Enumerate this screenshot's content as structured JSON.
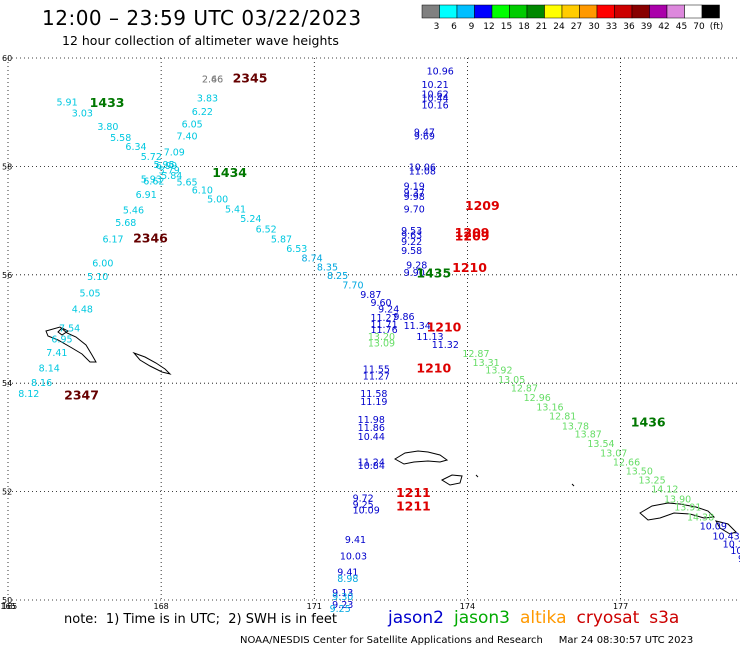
{
  "header": {
    "title": "12:00 – 23:59 UTC 03/22/2023",
    "subtitle": "12 hour collection of altimeter wave heights"
  },
  "footer": {
    "note": "note:  1) Time is in UTC;  2) SWH is in feet",
    "credit": "NOAA/NESDIS Center for Satellite Applications and Research     Mar 24 08:30:57 UTC 2023"
  },
  "missions": [
    {
      "name": "jason2",
      "color": "#0000cc"
    },
    {
      "name": "jason3",
      "color": "#00aa00"
    },
    {
      "name": "altika",
      "color": "#ff9900"
    },
    {
      "name": "cryosat",
      "color": "#cc0000"
    },
    {
      "name": "s3a",
      "color": "#cc0000"
    }
  ],
  "colorbar": {
    "labels": [
      "3",
      "6",
      "9",
      "12",
      "15",
      "18",
      "21",
      "24",
      "27",
      "30",
      "33",
      "36",
      "39",
      "42",
      "45",
      "70",
      "(ft)"
    ],
    "colors": [
      "#808080",
      "#00ffff",
      "#00bfff",
      "#0000ff",
      "#00ff00",
      "#00cc00",
      "#008800",
      "#ffff00",
      "#ffcc00",
      "#ff9900",
      "#ff0000",
      "#cc0000",
      "#880000",
      "#aa00aa",
      "#dd88dd",
      "#ffffff",
      "#000000"
    ]
  },
  "chart_data": {
    "type": "scatter",
    "title": "12:00 – 23:59 UTC 03/22/2023",
    "subtitle": "12 hour collection of altimeter wave heights",
    "xlim": [
      165,
      179.3
    ],
    "ylim": [
      50,
      60
    ],
    "x_ticks": [
      "165",
      "168",
      "171",
      "174",
      "177"
    ],
    "y_ticks": [
      "50",
      "52",
      "54",
      "56",
      "58",
      "60"
    ],
    "grid": true,
    "unit": "ft",
    "points": [
      {
        "lon": 168.8,
        "lat": 59.55,
        "v": "2.46",
        "c": "#808080"
      },
      {
        "lon": 168.8,
        "lat": 59.55,
        "v": "2.66",
        "c": "#808080"
      },
      {
        "lon": 168.7,
        "lat": 59.2,
        "v": "3.83",
        "c": "#00c8e0"
      },
      {
        "lon": 168.6,
        "lat": 58.95,
        "v": "6.22",
        "c": "#00c8e0"
      },
      {
        "lon": 168.4,
        "lat": 58.72,
        "v": "6.05",
        "c": "#00c8e0"
      },
      {
        "lon": 168.3,
        "lat": 58.5,
        "v": "7.40",
        "c": "#00c8e0"
      },
      {
        "lon": 168.05,
        "lat": 58.2,
        "v": "7.09",
        "c": "#00c8e0"
      },
      {
        "lon": 167.9,
        "lat": 57.95,
        "v": "6.99",
        "c": "#00c8e0"
      },
      {
        "lon": 167.65,
        "lat": 57.67,
        "v": "6.62",
        "c": "#00c8e0"
      },
      {
        "lon": 167.5,
        "lat": 57.42,
        "v": "6.91",
        "c": "#00c8e0"
      },
      {
        "lon": 167.25,
        "lat": 57.13,
        "v": "5.46",
        "c": "#00c8e0"
      },
      {
        "lon": 167.1,
        "lat": 56.9,
        "v": "5.68",
        "c": "#00c8e0"
      },
      {
        "lon": 166.85,
        "lat": 56.6,
        "v": "6.17",
        "c": "#00c8e0"
      },
      {
        "lon": 166.65,
        "lat": 56.15,
        "v": "6.00",
        "c": "#00c8e0"
      },
      {
        "lon": 166.55,
        "lat": 55.9,
        "v": "5.10",
        "c": "#00c8e0"
      },
      {
        "lon": 166.4,
        "lat": 55.6,
        "v": "5.05",
        "c": "#00c8e0"
      },
      {
        "lon": 166.25,
        "lat": 55.3,
        "v": "4.48",
        "c": "#00c8e0"
      },
      {
        "lon": 166.0,
        "lat": 54.95,
        "v": "7.54",
        "c": "#00c8e0"
      },
      {
        "lon": 165.85,
        "lat": 54.75,
        "v": "6.95",
        "c": "#00c8e0"
      },
      {
        "lon": 165.75,
        "lat": 54.5,
        "v": "7.41",
        "c": "#00c8e0"
      },
      {
        "lon": 165.6,
        "lat": 54.22,
        "v": "8.14",
        "c": "#00c8e0"
      },
      {
        "lon": 165.45,
        "lat": 53.95,
        "v": "8.16",
        "c": "#00c8e0"
      },
      {
        "lon": 165.2,
        "lat": 53.75,
        "v": "8.12",
        "c": "#00c8e0"
      },
      {
        "lon": 165.95,
        "lat": 59.12,
        "v": "5.91",
        "c": "#00c8e0"
      },
      {
        "lon": 166.25,
        "lat": 58.92,
        "v": "3.03",
        "c": "#00c8e0"
      },
      {
        "lon": 166.75,
        "lat": 58.67,
        "v": "3.80",
        "c": "#00c8e0"
      },
      {
        "lon": 167.0,
        "lat": 58.47,
        "v": "5.58",
        "c": "#00c8e0"
      },
      {
        "lon": 167.3,
        "lat": 58.3,
        "v": "6.34",
        "c": "#00c8e0"
      },
      {
        "lon": 167.6,
        "lat": 58.12,
        "v": "5.72",
        "c": "#00c8e0"
      },
      {
        "lon": 167.85,
        "lat": 57.97,
        "v": "5.95",
        "c": "#00c8e0"
      },
      {
        "lon": 167.95,
        "lat": 57.87,
        "v": "5.79",
        "c": "#00c8e0"
      },
      {
        "lon": 168.0,
        "lat": 57.77,
        "v": "5.84",
        "c": "#00c8e0"
      },
      {
        "lon": 167.6,
        "lat": 57.7,
        "v": "5.93",
        "c": "#00c8e0"
      },
      {
        "lon": 168.3,
        "lat": 57.65,
        "v": "5.65",
        "c": "#00c8e0"
      },
      {
        "lon": 168.6,
        "lat": 57.5,
        "v": "6.10",
        "c": "#00c8e0"
      },
      {
        "lon": 168.9,
        "lat": 57.33,
        "v": "5.00",
        "c": "#00c8e0"
      },
      {
        "lon": 169.25,
        "lat": 57.15,
        "v": "5.41",
        "c": "#00c8e0"
      },
      {
        "lon": 169.55,
        "lat": 56.97,
        "v": "5.24",
        "c": "#00c8e0"
      },
      {
        "lon": 169.85,
        "lat": 56.78,
        "v": "6.52",
        "c": "#00c8e0"
      },
      {
        "lon": 170.15,
        "lat": 56.6,
        "v": "5.87",
        "c": "#00c8e0"
      },
      {
        "lon": 170.45,
        "lat": 56.42,
        "v": "6.53",
        "c": "#00c8e0"
      },
      {
        "lon": 170.75,
        "lat": 56.25,
        "v": "8.74",
        "c": "#00a8e0"
      },
      {
        "lon": 171.05,
        "lat": 56.08,
        "v": "8.35",
        "c": "#00a8e0"
      },
      {
        "lon": 171.25,
        "lat": 55.92,
        "v": "8.25",
        "c": "#00a8e0"
      },
      {
        "lon": 171.55,
        "lat": 55.75,
        "v": "7.70",
        "c": "#00a8e0"
      },
      {
        "lon": 171.9,
        "lat": 55.57,
        "v": "9.87",
        "c": "#0000cc"
      },
      {
        "lon": 172.1,
        "lat": 55.42,
        "v": "9.60",
        "c": "#0000cc"
      },
      {
        "lon": 172.25,
        "lat": 55.3,
        "v": "9.24",
        "c": "#0000cc"
      },
      {
        "lon": 172.55,
        "lat": 55.17,
        "v": "9.86",
        "c": "#0000cc"
      },
      {
        "lon": 172.75,
        "lat": 55.0,
        "v": "11.34",
        "c": "#0000cc"
      },
      {
        "lon": 173.0,
        "lat": 54.8,
        "v": "11.13",
        "c": "#0000cc"
      },
      {
        "lon": 173.3,
        "lat": 54.65,
        "v": "11.32",
        "c": "#0000cc"
      },
      {
        "lon": 173.9,
        "lat": 54.48,
        "v": "12.87",
        "c": "#66dd66"
      },
      {
        "lon": 174.1,
        "lat": 54.32,
        "v": "13.31",
        "c": "#66dd66"
      },
      {
        "lon": 174.35,
        "lat": 54.18,
        "v": "13.92",
        "c": "#66dd66"
      },
      {
        "lon": 174.6,
        "lat": 54.0,
        "v": "13.05",
        "c": "#66dd66"
      },
      {
        "lon": 174.85,
        "lat": 53.85,
        "v": "12.87",
        "c": "#66dd66"
      },
      {
        "lon": 175.1,
        "lat": 53.67,
        "v": "12.96",
        "c": "#66dd66"
      },
      {
        "lon": 175.35,
        "lat": 53.5,
        "v": "13.16",
        "c": "#66dd66"
      },
      {
        "lon": 175.6,
        "lat": 53.33,
        "v": "12.81",
        "c": "#66dd66"
      },
      {
        "lon": 175.85,
        "lat": 53.15,
        "v": "13.78",
        "c": "#66dd66"
      },
      {
        "lon": 176.1,
        "lat": 53.0,
        "v": "13.87",
        "c": "#66dd66"
      },
      {
        "lon": 176.35,
        "lat": 52.82,
        "v": "13.54",
        "c": "#66dd66"
      },
      {
        "lon": 176.6,
        "lat": 52.65,
        "v": "13.07",
        "c": "#66dd66"
      },
      {
        "lon": 176.85,
        "lat": 52.48,
        "v": "12.66",
        "c": "#66dd66"
      },
      {
        "lon": 177.1,
        "lat": 52.32,
        "v": "13.50",
        "c": "#66dd66"
      },
      {
        "lon": 177.35,
        "lat": 52.15,
        "v": "13.25",
        "c": "#66dd66"
      },
      {
        "lon": 177.6,
        "lat": 51.98,
        "v": "14.12",
        "c": "#66dd66"
      },
      {
        "lon": 177.85,
        "lat": 51.8,
        "v": "13.90",
        "c": "#66dd66"
      },
      {
        "lon": 178.05,
        "lat": 51.65,
        "v": "13.91",
        "c": "#66dd66"
      },
      {
        "lon": 178.3,
        "lat": 51.47,
        "v": "14.38",
        "c": "#66dd66"
      },
      {
        "lon": 178.55,
        "lat": 51.3,
        "v": "10.09",
        "c": "#0000cc"
      },
      {
        "lon": 178.8,
        "lat": 51.12,
        "v": "10.43",
        "c": "#0000cc"
      },
      {
        "lon": 179.0,
        "lat": 50.97,
        "v": "10.17",
        "c": "#0000cc"
      },
      {
        "lon": 179.15,
        "lat": 50.85,
        "v": "10.47",
        "c": "#0000cc"
      },
      {
        "lon": 179.3,
        "lat": 50.7,
        "v": "9.63",
        "c": "#0000cc"
      },
      {
        "lon": 179.4,
        "lat": 50.55,
        "v": "11.",
        "c": "#0000cc"
      },
      {
        "lon": 173.2,
        "lat": 59.7,
        "v": "10.96",
        "c": "#0000cc"
      },
      {
        "lon": 173.1,
        "lat": 59.45,
        "v": "10.21",
        "c": "#0000cc"
      },
      {
        "lon": 173.1,
        "lat": 59.27,
        "v": "10.62",
        "c": "#0000cc"
      },
      {
        "lon": 173.1,
        "lat": 59.2,
        "v": "10.44",
        "c": "#0000cc"
      },
      {
        "lon": 173.1,
        "lat": 59.07,
        "v": "10.16",
        "c": "#0000cc"
      },
      {
        "lon": 172.95,
        "lat": 58.57,
        "v": "9.47",
        "c": "#0000cc"
      },
      {
        "lon": 172.95,
        "lat": 58.5,
        "v": "9.69",
        "c": "#0000cc"
      },
      {
        "lon": 172.85,
        "lat": 57.92,
        "v": "10.06",
        "c": "#0000cc"
      },
      {
        "lon": 172.85,
        "lat": 57.85,
        "v": "11.08",
        "c": "#0000cc"
      },
      {
        "lon": 172.75,
        "lat": 57.57,
        "v": "9.19",
        "c": "#0000cc"
      },
      {
        "lon": 172.75,
        "lat": 57.45,
        "v": "9.37",
        "c": "#0000cc"
      },
      {
        "lon": 172.75,
        "lat": 57.38,
        "v": "9.98",
        "c": "#0000cc"
      },
      {
        "lon": 172.75,
        "lat": 57.15,
        "v": "9.70",
        "c": "#0000cc"
      },
      {
        "lon": 172.7,
        "lat": 56.75,
        "v": "9.53",
        "c": "#0000cc"
      },
      {
        "lon": 172.7,
        "lat": 56.67,
        "v": "9.63",
        "c": "#0000cc"
      },
      {
        "lon": 172.7,
        "lat": 56.55,
        "v": "9.22",
        "c": "#0000cc"
      },
      {
        "lon": 172.7,
        "lat": 56.38,
        "v": "9.58",
        "c": "#0000cc"
      },
      {
        "lon": 172.8,
        "lat": 56.12,
        "v": "9.28",
        "c": "#0000cc"
      },
      {
        "lon": 172.75,
        "lat": 55.98,
        "v": "9.90",
        "c": "#0000cc"
      },
      {
        "lon": 172.1,
        "lat": 55.15,
        "v": "11.27",
        "c": "#0000cc"
      },
      {
        "lon": 172.1,
        "lat": 55.02,
        "v": "11.71",
        "c": "#0000cc"
      },
      {
        "lon": 172.1,
        "lat": 54.93,
        "v": "11.76",
        "c": "#0000cc"
      },
      {
        "lon": 172.05,
        "lat": 54.8,
        "v": "13.20",
        "c": "#66dd66"
      },
      {
        "lon": 172.05,
        "lat": 54.68,
        "v": "13.09",
        "c": "#66dd66"
      },
      {
        "lon": 171.95,
        "lat": 54.2,
        "v": "11.55",
        "c": "#0000cc"
      },
      {
        "lon": 171.95,
        "lat": 54.07,
        "v": "11.27",
        "c": "#0000cc"
      },
      {
        "lon": 171.9,
        "lat": 53.75,
        "v": "11.58",
        "c": "#0000cc"
      },
      {
        "lon": 171.9,
        "lat": 53.6,
        "v": "11.19",
        "c": "#0000cc"
      },
      {
        "lon": 171.85,
        "lat": 53.27,
        "v": "11.98",
        "c": "#0000cc"
      },
      {
        "lon": 171.85,
        "lat": 53.12,
        "v": "11.86",
        "c": "#0000cc"
      },
      {
        "lon": 171.85,
        "lat": 52.95,
        "v": "10.44",
        "c": "#0000cc"
      },
      {
        "lon": 171.85,
        "lat": 52.48,
        "v": "11.24",
        "c": "#0000cc"
      },
      {
        "lon": 171.85,
        "lat": 52.42,
        "v": "10.84",
        "c": "#0000cc"
      },
      {
        "lon": 171.75,
        "lat": 51.82,
        "v": "9.72",
        "c": "#0000cc"
      },
      {
        "lon": 171.75,
        "lat": 51.7,
        "v": "9.25",
        "c": "#0000cc"
      },
      {
        "lon": 171.75,
        "lat": 51.6,
        "v": "10.09",
        "c": "#0000cc"
      },
      {
        "lon": 171.6,
        "lat": 51.05,
        "v": "9.41",
        "c": "#0000cc"
      },
      {
        "lon": 171.5,
        "lat": 50.75,
        "v": "10.03",
        "c": "#0000cc"
      },
      {
        "lon": 171.45,
        "lat": 50.45,
        "v": "9.41",
        "c": "#0000cc"
      },
      {
        "lon": 171.45,
        "lat": 50.33,
        "v": "8.98",
        "c": "#00a8e0"
      },
      {
        "lon": 171.35,
        "lat": 50.07,
        "v": "9.13",
        "c": "#0000cc"
      },
      {
        "lon": 171.35,
        "lat": 50.0,
        "v": "9.30",
        "c": "#00a8e0"
      },
      {
        "lon": 171.35,
        "lat": 49.85,
        "v": "9.23",
        "c": "#0000cc"
      },
      {
        "lon": 171.3,
        "lat": 49.78,
        "v": "9.25",
        "c": "#00a8e0"
      }
    ],
    "time_markers": [
      {
        "lon": 166.6,
        "lat": 59.1,
        "label": "1433",
        "c": "#007700"
      },
      {
        "lon": 169.0,
        "lat": 57.8,
        "label": "1434",
        "c": "#007700"
      },
      {
        "lon": 173.0,
        "lat": 55.95,
        "label": "1435",
        "c": "#007700"
      },
      {
        "lon": 177.2,
        "lat": 53.2,
        "label": "1436",
        "c": "#007700"
      },
      {
        "lon": 169.4,
        "lat": 59.55,
        "label": "2345",
        "c": "#660000"
      },
      {
        "lon": 167.45,
        "lat": 56.6,
        "label": "2346",
        "c": "#660000"
      },
      {
        "lon": 166.1,
        "lat": 53.7,
        "label": "2347",
        "c": "#660000"
      },
      {
        "lon": 173.95,
        "lat": 57.2,
        "label": "1209",
        "c": "#dd0000"
      },
      {
        "lon": 173.75,
        "lat": 56.7,
        "label": "1209",
        "c": "#dd0000"
      },
      {
        "lon": 173.75,
        "lat": 56.63,
        "label": "1209",
        "c": "#dd0000"
      },
      {
        "lon": 173.7,
        "lat": 56.05,
        "label": "1210",
        "c": "#dd0000"
      },
      {
        "lon": 173.2,
        "lat": 54.95,
        "label": "1210",
        "c": "#dd0000"
      },
      {
        "lon": 173.0,
        "lat": 54.2,
        "label": "1210",
        "c": "#dd0000"
      },
      {
        "lon": 172.6,
        "lat": 51.9,
        "label": "1211",
        "c": "#dd0000"
      },
      {
        "lon": 172.6,
        "lat": 51.65,
        "label": "1211",
        "c": "#dd0000"
      }
    ]
  }
}
